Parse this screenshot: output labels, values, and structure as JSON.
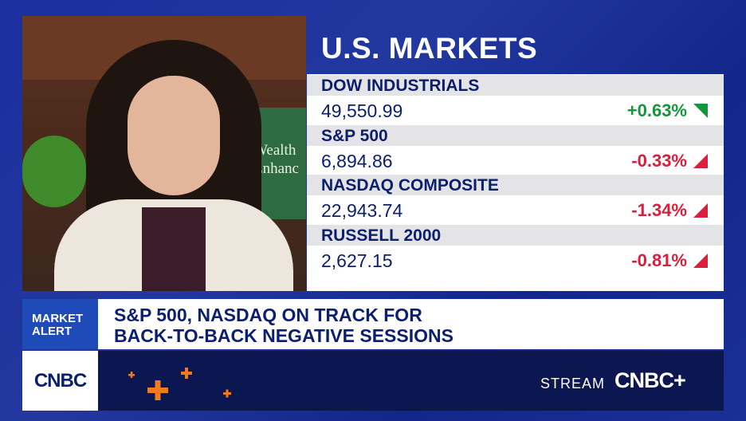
{
  "panel": {
    "title": "U.S. MARKETS",
    "markets": [
      {
        "name": "DOW INDUSTRIALS",
        "value": "49,550.99",
        "change": "+0.63%",
        "color": "#15963a"
      },
      {
        "name": "S&P 500",
        "value": "6,894.86",
        "change": "-0.33%",
        "color": "#d81f3c"
      },
      {
        "name": "NASDAQ COMPOSITE",
        "value": "22,943.74",
        "change": "-1.34%",
        "color": "#d81f3c"
      },
      {
        "name": "RUSSELL 2000",
        "value": "2,627.15",
        "change": "-0.81%",
        "color": "#d81f3c"
      }
    ]
  },
  "video": {
    "sign": [
      "Wealth",
      "Enhanc"
    ]
  },
  "alert": {
    "label": [
      "MARKET",
      "ALERT"
    ],
    "headline": [
      "S&P 500, NASDAQ ON TRACK FOR",
      "BACK-TO-BACK NEGATIVE SESSIONS"
    ]
  },
  "footer": {
    "logo": "CNBC",
    "stream": "STREAM",
    "stream_logo": "CNBC+"
  }
}
